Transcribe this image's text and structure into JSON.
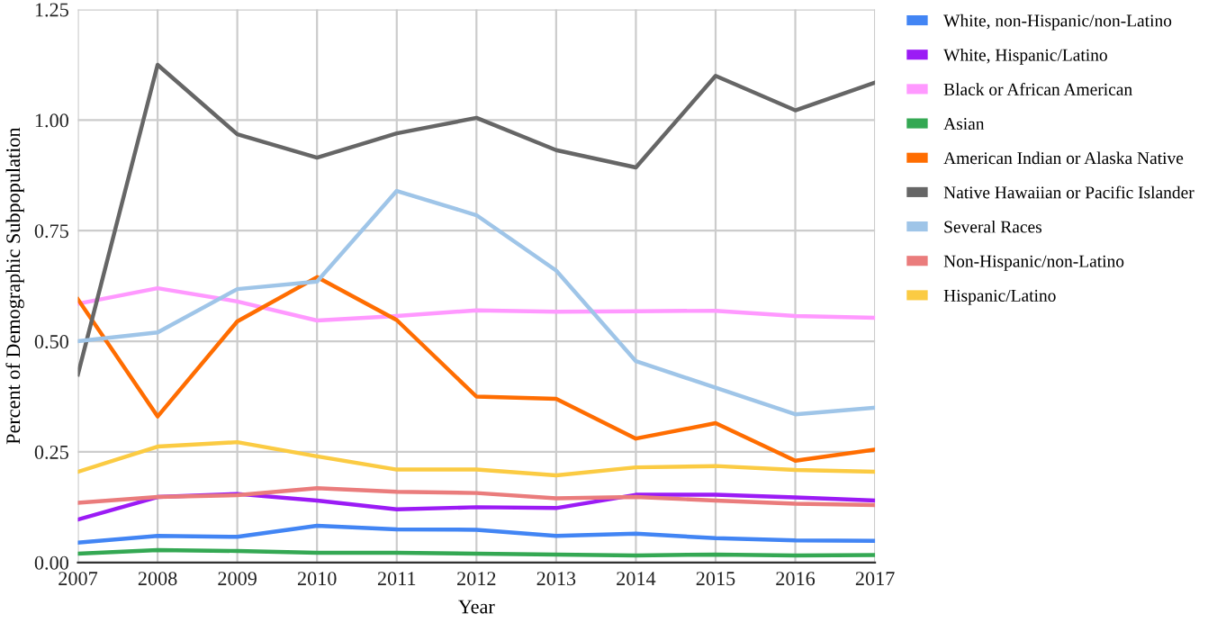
{
  "chart_data": {
    "type": "line",
    "xlabel": "Year",
    "ylabel": "Percent of Demographic Subpopulation",
    "x": [
      2007,
      2008,
      2009,
      2010,
      2011,
      2012,
      2013,
      2014,
      2015,
      2016,
      2017
    ],
    "xlim": [
      2007,
      2017
    ],
    "xticks": [
      2007,
      2008,
      2009,
      2010,
      2011,
      2012,
      2013,
      2014,
      2015,
      2016,
      2017
    ],
    "ylim": [
      0,
      1.25
    ],
    "yticks": [
      {
        "value": 0,
        "label": "0.00"
      },
      {
        "value": 0.25,
        "label": "0.25"
      },
      {
        "value": 0.5,
        "label": "0.50"
      },
      {
        "value": 0.75,
        "label": "0.75"
      },
      {
        "value": 1,
        "label": "1.00"
      },
      {
        "value": 1.25,
        "label": "1.25"
      }
    ],
    "grid": true,
    "legend": "right",
    "marker": "none",
    "line_style": "solid",
    "series": [
      {
        "name": "White, non-Hispanic/non-Latino",
        "color": "#4285f4",
        "values": [
          0.045,
          0.06,
          0.058,
          0.083,
          0.075,
          0.074,
          0.06,
          0.065,
          0.055,
          0.05,
          0.049
        ]
      },
      {
        "name": "White, Hispanic/Latino",
        "color": "#9b1bf5",
        "values": [
          0.097,
          0.148,
          0.155,
          0.14,
          0.12,
          0.125,
          0.123,
          0.153,
          0.153,
          0.147,
          0.14
        ]
      },
      {
        "name": "Black or African American",
        "color": "#ff99ff",
        "values": [
          0.585,
          0.62,
          0.59,
          0.547,
          0.557,
          0.57,
          0.567,
          0.568,
          0.569,
          0.557,
          0.553
        ]
      },
      {
        "name": "Asian",
        "color": "#34a853",
        "values": [
          0.02,
          0.028,
          0.026,
          0.022,
          0.022,
          0.02,
          0.018,
          0.016,
          0.018,
          0.016,
          0.017
        ]
      },
      {
        "name": "American Indian or Alaska Native",
        "color": "#ff6d01",
        "values": [
          0.595,
          0.33,
          0.545,
          0.645,
          0.548,
          0.375,
          0.37,
          0.28,
          0.315,
          0.23,
          0.255
        ]
      },
      {
        "name": "Native Hawaiian or Pacific Islander",
        "color": "#666666",
        "values": [
          0.425,
          1.125,
          0.968,
          0.915,
          0.97,
          1.005,
          0.932,
          0.893,
          1.1,
          1.022,
          1.085
        ]
      },
      {
        "name": "Several Races",
        "color": "#9fc5e8",
        "values": [
          0.5,
          0.52,
          0.618,
          0.635,
          0.84,
          0.785,
          0.66,
          0.455,
          0.395,
          0.335,
          0.35
        ]
      },
      {
        "name": "Non-Hispanic/non-Latino",
        "color": "#ea7c7c",
        "values": [
          0.135,
          0.148,
          0.152,
          0.168,
          0.16,
          0.157,
          0.145,
          0.148,
          0.14,
          0.133,
          0.13
        ]
      },
      {
        "name": "Hispanic/Latino",
        "color": "#fbcb43",
        "values": [
          0.205,
          0.262,
          0.272,
          0.24,
          0.21,
          0.21,
          0.197,
          0.215,
          0.218,
          0.209,
          0.205
        ]
      }
    ]
  }
}
